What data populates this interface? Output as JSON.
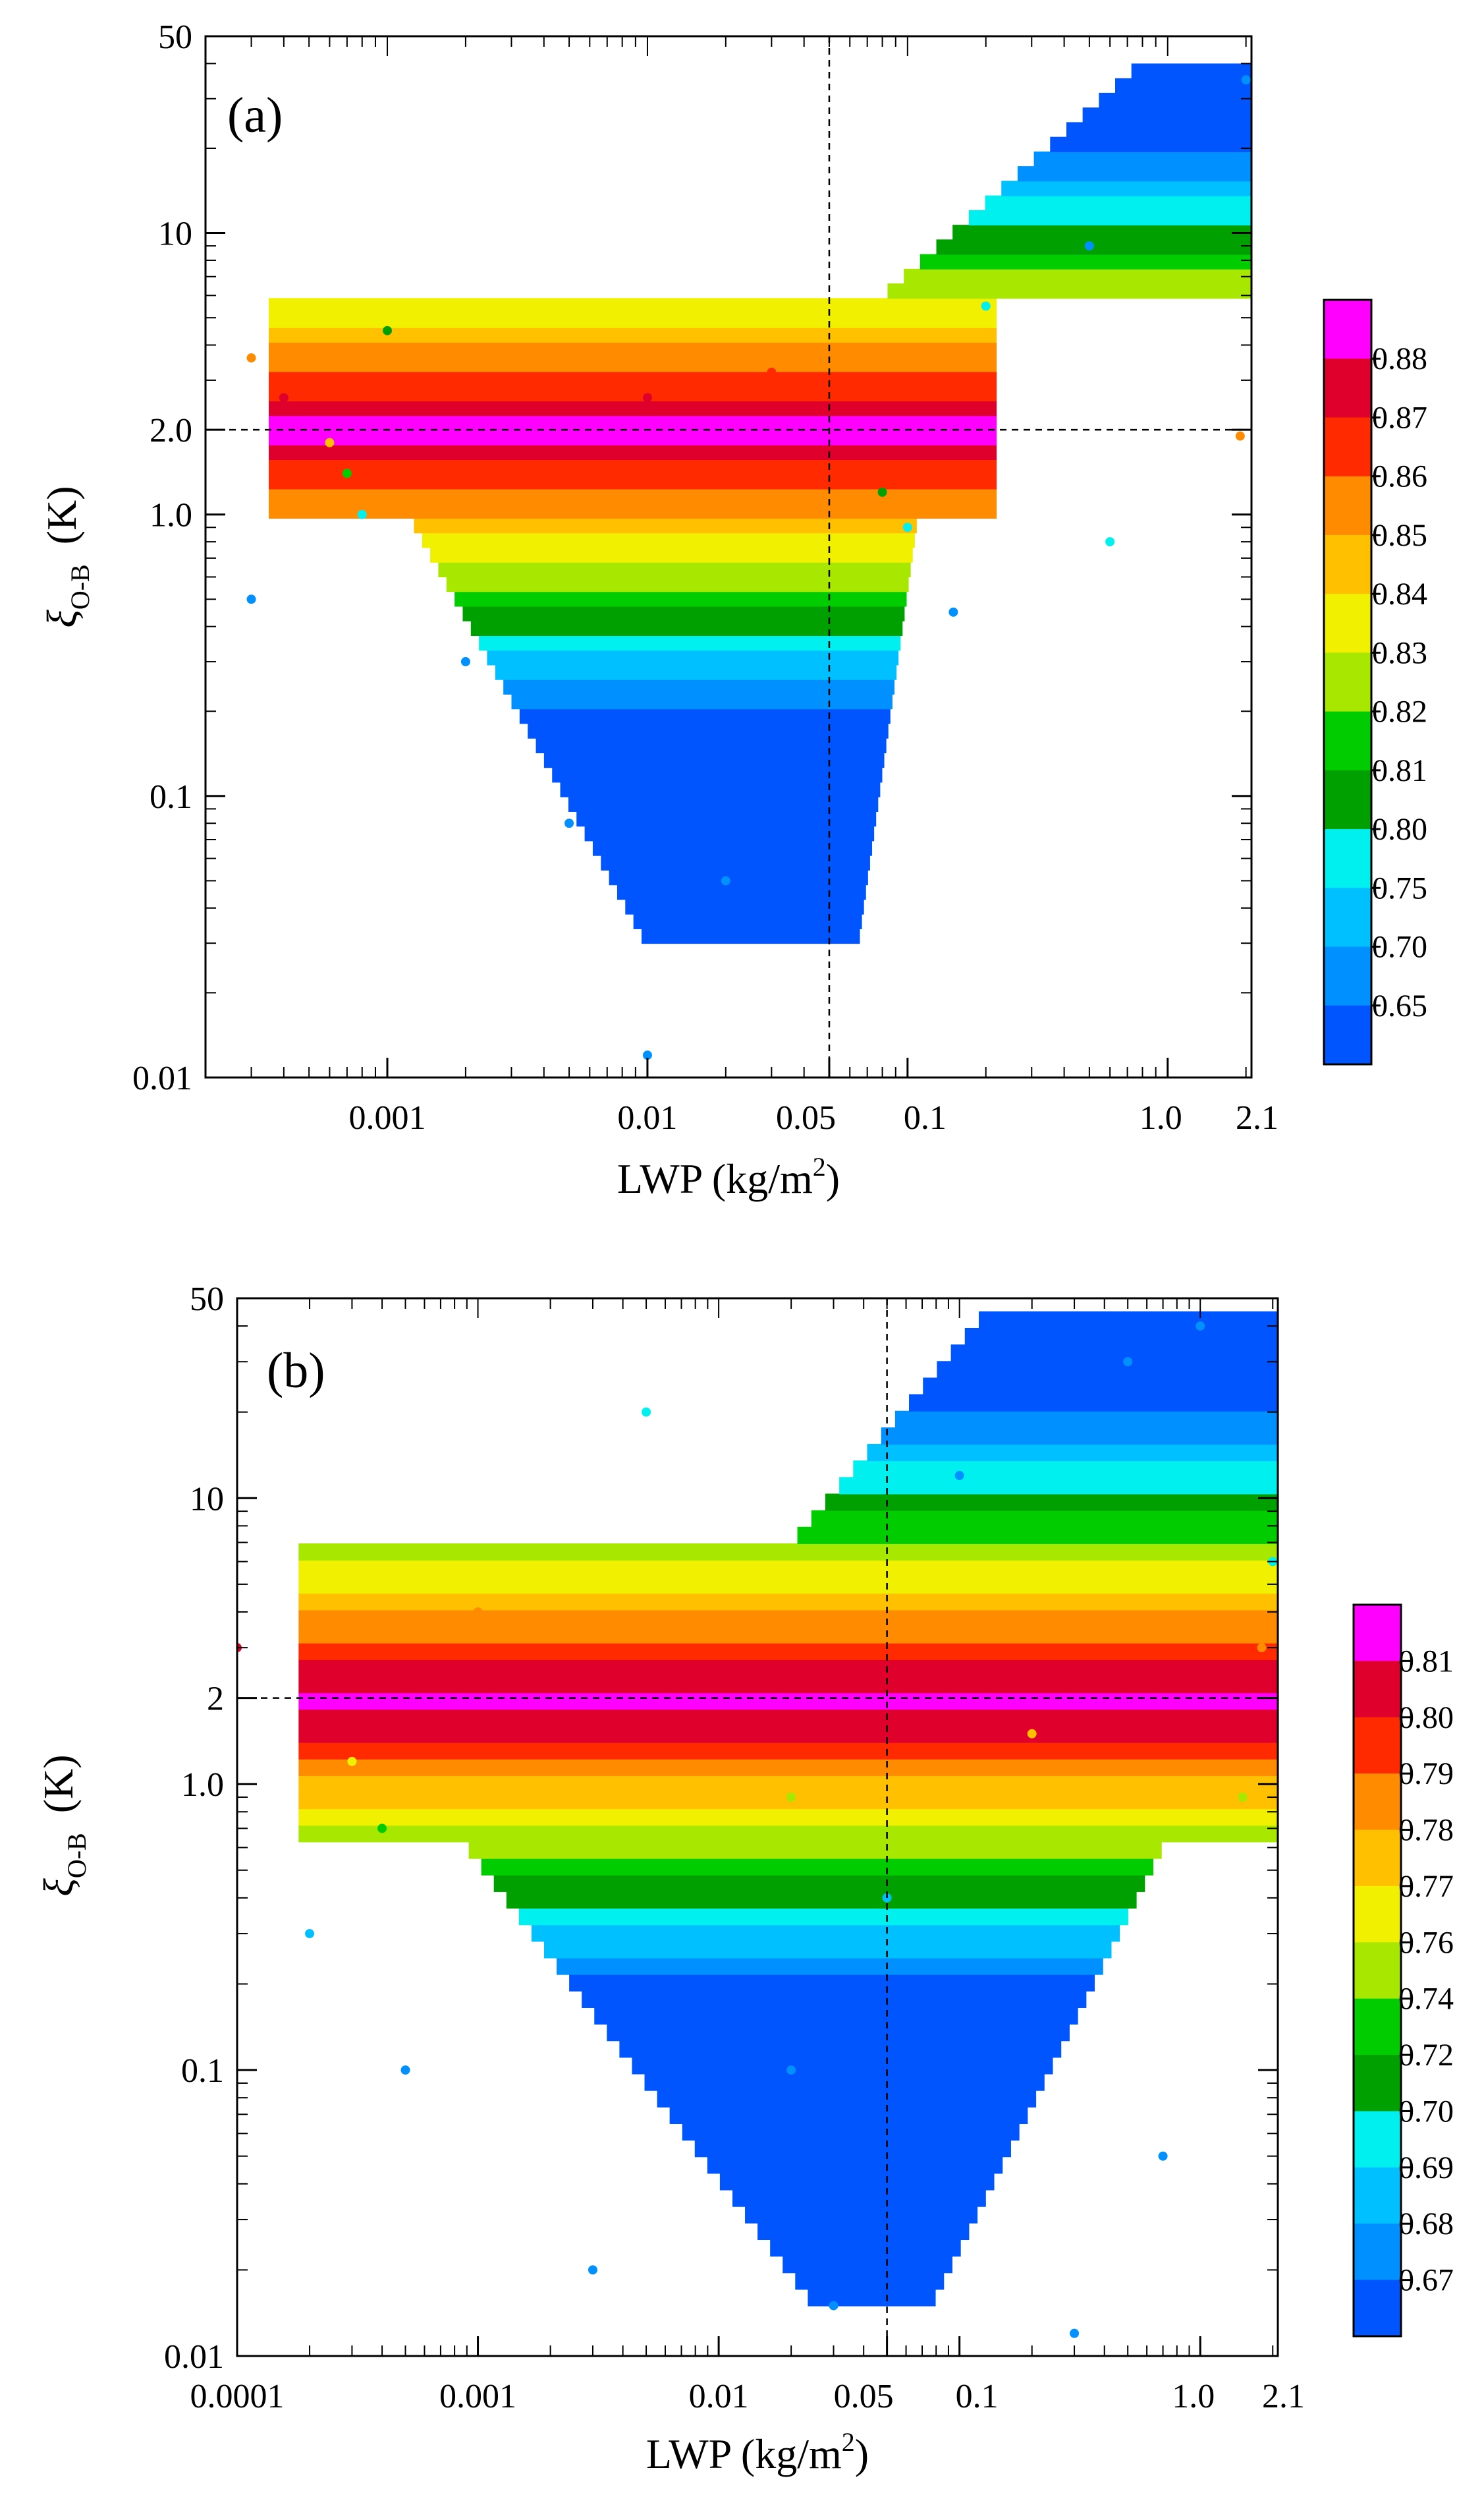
{
  "chart_data": [
    {
      "type": "scatter",
      "panel": "(a)",
      "xlabel": "LWP (kg/m",
      "xlabel_sup": "2",
      "xlabel_end": ")",
      "ylabel_symbol": "ξ",
      "ylabel_sub": "O-B",
      "ylabel_unit": "(K)",
      "xscale": "log",
      "yscale": "log",
      "xlim": [
        0.0002,
        2.1
      ],
      "ylim": [
        0.01,
        50
      ],
      "x_ticks": [
        {
          "value": 0.001,
          "label": "0.001"
        },
        {
          "value": 0.01,
          "label": "0.01"
        },
        {
          "value": 0.05,
          "label": "0.05"
        },
        {
          "value": 0.1,
          "label": "0.1"
        },
        {
          "value": 1.0,
          "label": "1.0"
        },
        {
          "value": 2.1,
          "label": "2.1"
        }
      ],
      "y_ticks": [
        {
          "value": 0.01,
          "label": "0.01"
        },
        {
          "value": 0.1,
          "label": "0.1"
        },
        {
          "value": 1.0,
          "label": "1.0"
        },
        {
          "value": 2.0,
          "label": "2.0"
        },
        {
          "value": 10,
          "label": "10"
        },
        {
          "value": 50,
          "label": "50"
        }
      ],
      "reference_lines": {
        "x": 0.05,
        "y": 2.0
      },
      "colorbar": {
        "labels": [
          "0.88",
          "0.87",
          "0.86",
          "0.85",
          "0.84",
          "0.83",
          "0.82",
          "0.81",
          "0.80",
          "0.75",
          "0.70",
          "0.65"
        ],
        "colors": [
          "#ff00ff",
          "#e0002c",
          "#ff2a00",
          "#ff8c00",
          "#ffc000",
          "#f0f000",
          "#a8e800",
          "#00cc00",
          "#00a000",
          "#00f0f0",
          "#00c0ff",
          "#0090ff",
          "#0055ff"
        ]
      },
      "points": [
        {
          "x": 0.0003,
          "y": 3.6,
          "c": 0.85
        },
        {
          "x": 0.0004,
          "y": 2.6,
          "c": 0.87
        },
        {
          "x": 0.0005,
          "y": 2.1,
          "c": 0.88
        },
        {
          "x": 0.0006,
          "y": 1.8,
          "c": 0.84
        },
        {
          "x": 0.0007,
          "y": 1.4,
          "c": 0.81
        },
        {
          "x": 0.0008,
          "y": 1.0,
          "c": 0.75
        },
        {
          "x": 0.0003,
          "y": 0.5,
          "c": 0.65
        },
        {
          "x": 0.001,
          "y": 4.5,
          "c": 0.8
        },
        {
          "x": 0.002,
          "y": 0.3,
          "c": 0.65
        },
        {
          "x": 0.005,
          "y": 0.08,
          "c": 0.65
        },
        {
          "x": 0.01,
          "y": 0.012,
          "c": 0.65
        },
        {
          "x": 0.02,
          "y": 0.05,
          "c": 0.65
        },
        {
          "x": 0.01,
          "y": 2.6,
          "c": 0.87
        },
        {
          "x": 0.03,
          "y": 3.2,
          "c": 0.86
        },
        {
          "x": 0.05,
          "y": 2.0,
          "c": 0.88
        },
        {
          "x": 0.08,
          "y": 1.2,
          "c": 0.8
        },
        {
          "x": 0.1,
          "y": 0.9,
          "c": 0.75
        },
        {
          "x": 0.2,
          "y": 5.5,
          "c": 0.75
        },
        {
          "x": 0.5,
          "y": 9.0,
          "c": 0.65
        },
        {
          "x": 1.0,
          "y": 18.0,
          "c": 0.65
        },
        {
          "x": 2.0,
          "y": 35.0,
          "c": 0.65
        },
        {
          "x": 0.6,
          "y": 0.8,
          "c": 0.75
        },
        {
          "x": 0.15,
          "y": 0.45,
          "c": 0.65
        },
        {
          "x": 1.9,
          "y": 1.9,
          "c": 0.85
        }
      ]
    },
    {
      "type": "scatter",
      "panel": "(b)",
      "xlabel": "LWP (kg/m",
      "xlabel_sup": "2",
      "xlabel_end": ")",
      "ylabel_symbol": "ξ",
      "ylabel_sub": "O-B",
      "ylabel_unit": "(K)",
      "xscale": "log",
      "yscale": "log",
      "xlim": [
        0.0001,
        2.1
      ],
      "ylim": [
        0.01,
        50
      ],
      "x_ticks": [
        {
          "value": 0.0001,
          "label": "0.0001"
        },
        {
          "value": 0.001,
          "label": "0.001"
        },
        {
          "value": 0.01,
          "label": "0.01"
        },
        {
          "value": 0.05,
          "label": "0.05"
        },
        {
          "value": 0.1,
          "label": "0.1"
        },
        {
          "value": 1.0,
          "label": "1.0"
        },
        {
          "value": 2.1,
          "label": "2.1"
        }
      ],
      "y_ticks": [
        {
          "value": 0.01,
          "label": "0.01"
        },
        {
          "value": 0.1,
          "label": "0.1"
        },
        {
          "value": 1.0,
          "label": "1.0"
        },
        {
          "value": 2,
          "label": "2"
        },
        {
          "value": 10,
          "label": "10"
        },
        {
          "value": 50,
          "label": "50"
        }
      ],
      "reference_lines": {
        "x": 0.05,
        "y": 2.0
      },
      "colorbar": {
        "labels": [
          "0.81",
          "0.80",
          "0.79",
          "0.78",
          "0.77",
          "0.76",
          "0.74",
          "0.72",
          "0.70",
          "0.69",
          "0.68",
          "0.67"
        ],
        "colors": [
          "#ff00ff",
          "#e0002c",
          "#ff2a00",
          "#ff8c00",
          "#ffc000",
          "#f0f000",
          "#a8e800",
          "#00cc00",
          "#00a000",
          "#00f0f0",
          "#00c0ff",
          "#0090ff",
          "#0055ff"
        ]
      },
      "points": [
        {
          "x": 0.0001,
          "y": 3.0,
          "c": 0.8
        },
        {
          "x": 0.0002,
          "y": 2.0,
          "c": 0.81
        },
        {
          "x": 0.0003,
          "y": 1.2,
          "c": 0.76
        },
        {
          "x": 0.0004,
          "y": 0.7,
          "c": 0.72
        },
        {
          "x": 0.0002,
          "y": 0.3,
          "c": 0.68
        },
        {
          "x": 0.0005,
          "y": 0.1,
          "c": 0.67
        },
        {
          "x": 0.001,
          "y": 4.0,
          "c": 0.78
        },
        {
          "x": 0.003,
          "y": 0.02,
          "c": 0.67
        },
        {
          "x": 0.005,
          "y": 20.0,
          "c": 0.69
        },
        {
          "x": 0.01,
          "y": 2.0,
          "c": 0.81
        },
        {
          "x": 0.02,
          "y": 0.9,
          "c": 0.74
        },
        {
          "x": 0.03,
          "y": 0.015,
          "c": 0.67
        },
        {
          "x": 0.05,
          "y": 2.5,
          "c": 0.8
        },
        {
          "x": 0.05,
          "y": 0.4,
          "c": 0.68
        },
        {
          "x": 0.1,
          "y": 12.0,
          "c": 0.67
        },
        {
          "x": 0.2,
          "y": 1.5,
          "c": 0.77
        },
        {
          "x": 0.5,
          "y": 30.0,
          "c": 0.67
        },
        {
          "x": 1.0,
          "y": 40.0,
          "c": 0.67
        },
        {
          "x": 1.5,
          "y": 0.9,
          "c": 0.74
        },
        {
          "x": 2.0,
          "y": 6.0,
          "c": 0.69
        },
        {
          "x": 0.7,
          "y": 0.05,
          "c": 0.67
        },
        {
          "x": 0.3,
          "y": 0.012,
          "c": 0.67
        },
        {
          "x": 1.8,
          "y": 3.0,
          "c": 0.78
        },
        {
          "x": 0.02,
          "y": 0.1,
          "c": 0.67
        }
      ]
    }
  ]
}
